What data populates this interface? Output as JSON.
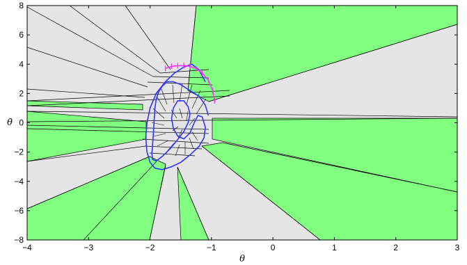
{
  "chart_data": {
    "type": "scatter",
    "title": "",
    "xlabel": "θ",
    "ylabel": "θ̇",
    "xlim": [
      -4,
      3
    ],
    "ylim": [
      -8,
      8
    ],
    "xticks": [
      -4,
      -3,
      -2,
      -1,
      0,
      1,
      2,
      3
    ],
    "yticks": [
      -8,
      -6,
      -4,
      -2,
      0,
      2,
      4,
      6,
      8
    ],
    "xtick_labels": [
      "−4",
      "−3",
      "−2",
      "−1",
      "0",
      "1",
      "2",
      "3"
    ],
    "ytick_labels": [
      "−8",
      "−6",
      "−4",
      "−2",
      "0",
      "2",
      "4",
      "6",
      "8"
    ],
    "grid": false,
    "colors": {
      "region_green": "#80ff80",
      "region_gray": "#e5e5e5",
      "region_boundary": "#000000",
      "trajectory_blue": "#3333ff",
      "trajectory_magenta": "#ff33ff"
    },
    "series": [
      {
        "color": "#3333ff",
        "x": [
          -1.05,
          -1.1,
          -1.2,
          -1.35,
          -1.5,
          -1.62,
          -1.72,
          -1.8,
          -1.86,
          -1.9,
          -1.92,
          -1.93,
          -1.94,
          -1.95,
          -1.96,
          -1.97,
          -1.96,
          -1.9,
          -1.8,
          -1.68,
          -1.56,
          -1.45,
          -1.38,
          -1.35,
          -1.38,
          -1.45,
          -1.55,
          -1.62,
          -1.65,
          -1.62,
          -1.55,
          -1.45,
          -1.35,
          -1.28,
          -1.22,
          -1.15,
          -1.1,
          -1.12,
          -1.2,
          -1.35,
          -1.5,
          -1.65,
          -1.8,
          -1.92,
          -2.0,
          -2.05,
          -2.07,
          -2.05,
          -2.0,
          -1.9,
          -1.75,
          -1.6,
          -1.45,
          -1.32,
          -1.2,
          -1.1
        ],
        "y": [
          0.5,
          1.2,
          1.8,
          2.2,
          2.6,
          2.8,
          2.8,
          2.5,
          2.1,
          1.6,
          1.0,
          0.4,
          -0.3,
          -1.0,
          -1.6,
          -2.1,
          -2.5,
          -2.6,
          -2.3,
          -1.8,
          -1.2,
          -0.6,
          0.0,
          0.6,
          1.1,
          1.5,
          1.5,
          1.0,
          0.3,
          -0.4,
          -0.9,
          -1.1,
          -0.7,
          0.0,
          0.5,
          0.4,
          -0.3,
          -1.0,
          -1.6,
          -2.2,
          -2.7,
          -3.0,
          -3.2,
          -3.1,
          -2.7,
          -2.0,
          -1.0,
          0.0,
          1.0,
          2.0,
          2.8,
          3.4,
          3.8,
          4.0,
          3.6,
          2.8
        ]
      },
      {
        "color": "#ff33ff",
        "x": [
          -1.75,
          -1.65,
          -1.55,
          -1.45,
          -1.35,
          -1.25,
          -1.15,
          -1.05,
          -0.98,
          -0.95
        ],
        "y": [
          3.7,
          3.85,
          3.9,
          3.9,
          3.85,
          3.7,
          3.4,
          2.9,
          2.2,
          1.5
        ]
      }
    ]
  }
}
